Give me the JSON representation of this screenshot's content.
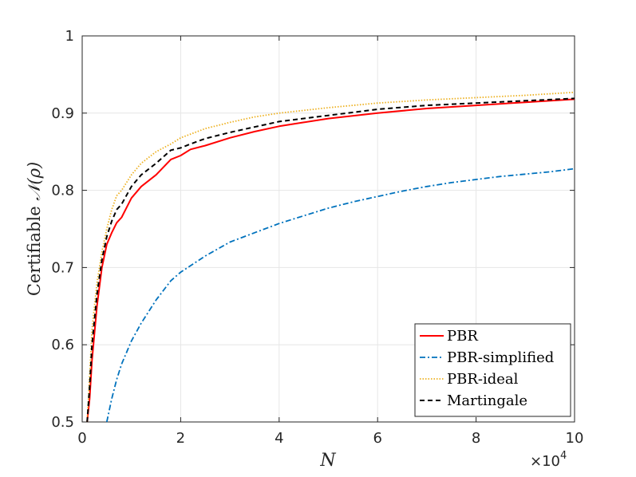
{
  "chart_data": {
    "type": "line",
    "xlabel": "N",
    "ylabel_prefix": "Certifiable ",
    "ylabel_math": "𝒩(ρ)",
    "x_multiplier_base": "×10",
    "x_multiplier_exp": "4",
    "xlim": [
      0,
      10
    ],
    "ylim": [
      0.5,
      1
    ],
    "grid": true,
    "legend_position": "bottom-right",
    "xticks": [
      0,
      2,
      4,
      6,
      8,
      10
    ],
    "xtick_labels": [
      "0",
      "2",
      "4",
      "6",
      "8",
      "10"
    ],
    "yticks": [
      0.5,
      0.6,
      0.7,
      0.8,
      0.9,
      1
    ],
    "ytick_labels": [
      "0.5",
      "0.6",
      "0.7",
      "0.8",
      "0.9",
      "1"
    ],
    "series": [
      {
        "name": "PBR",
        "color": "#ff0000",
        "dash": "solid",
        "x": [
          0.1,
          0.15,
          0.2,
          0.3,
          0.4,
          0.5,
          0.6,
          0.7,
          0.8,
          1.0,
          1.2,
          1.5,
          1.8,
          2.0,
          2.2,
          2.5,
          3.0,
          3.5,
          4.0,
          4.5,
          5.0,
          6.0,
          7.0,
          8.0,
          9.0,
          10.0
        ],
        "y": [
          0.5,
          0.53,
          0.58,
          0.65,
          0.7,
          0.73,
          0.745,
          0.758,
          0.765,
          0.79,
          0.805,
          0.82,
          0.84,
          0.845,
          0.853,
          0.858,
          0.868,
          0.876,
          0.883,
          0.888,
          0.893,
          0.9,
          0.906,
          0.91,
          0.914,
          0.918
        ]
      },
      {
        "name": "PBR-simplified",
        "color": "#0072bd",
        "dash": "dashdot",
        "x": [
          0.5,
          0.6,
          0.7,
          0.8,
          1.0,
          1.2,
          1.5,
          1.8,
          2.0,
          2.5,
          3.0,
          3.5,
          4.0,
          4.5,
          5.0,
          5.5,
          6.0,
          6.5,
          7.0,
          7.5,
          8.0,
          8.5,
          9.0,
          9.5,
          10.0
        ],
        "y": [
          0.5,
          0.53,
          0.555,
          0.575,
          0.605,
          0.628,
          0.658,
          0.683,
          0.694,
          0.715,
          0.733,
          0.745,
          0.757,
          0.767,
          0.777,
          0.785,
          0.792,
          0.799,
          0.805,
          0.81,
          0.814,
          0.818,
          0.821,
          0.824,
          0.828
        ]
      },
      {
        "name": "PBR-ideal",
        "color": "#edb120",
        "dash": "dotted",
        "x": [
          0.1,
          0.15,
          0.2,
          0.3,
          0.4,
          0.5,
          0.6,
          0.7,
          0.8,
          1.0,
          1.2,
          1.5,
          1.8,
          2.0,
          2.5,
          3.0,
          3.5,
          4.0,
          5.0,
          6.0,
          7.0,
          8.0,
          9.0,
          10.0
        ],
        "y": [
          0.5,
          0.56,
          0.62,
          0.68,
          0.72,
          0.75,
          0.775,
          0.793,
          0.8,
          0.82,
          0.835,
          0.85,
          0.86,
          0.868,
          0.88,
          0.888,
          0.895,
          0.9,
          0.907,
          0.913,
          0.917,
          0.92,
          0.923,
          0.927
        ]
      },
      {
        "name": "Martingale",
        "color": "#000000",
        "dash": "dashed",
        "x": [
          0.1,
          0.15,
          0.2,
          0.3,
          0.4,
          0.5,
          0.6,
          0.7,
          0.8,
          1.0,
          1.2,
          1.5,
          1.8,
          2.0,
          2.2,
          2.5,
          3.0,
          3.5,
          4.0,
          5.0,
          6.0,
          7.0,
          8.0,
          9.0,
          10.0
        ],
        "y": [
          0.5,
          0.545,
          0.6,
          0.665,
          0.71,
          0.74,
          0.76,
          0.775,
          0.782,
          0.805,
          0.82,
          0.835,
          0.852,
          0.855,
          0.86,
          0.867,
          0.875,
          0.882,
          0.889,
          0.897,
          0.905,
          0.91,
          0.913,
          0.916,
          0.919
        ]
      }
    ]
  }
}
